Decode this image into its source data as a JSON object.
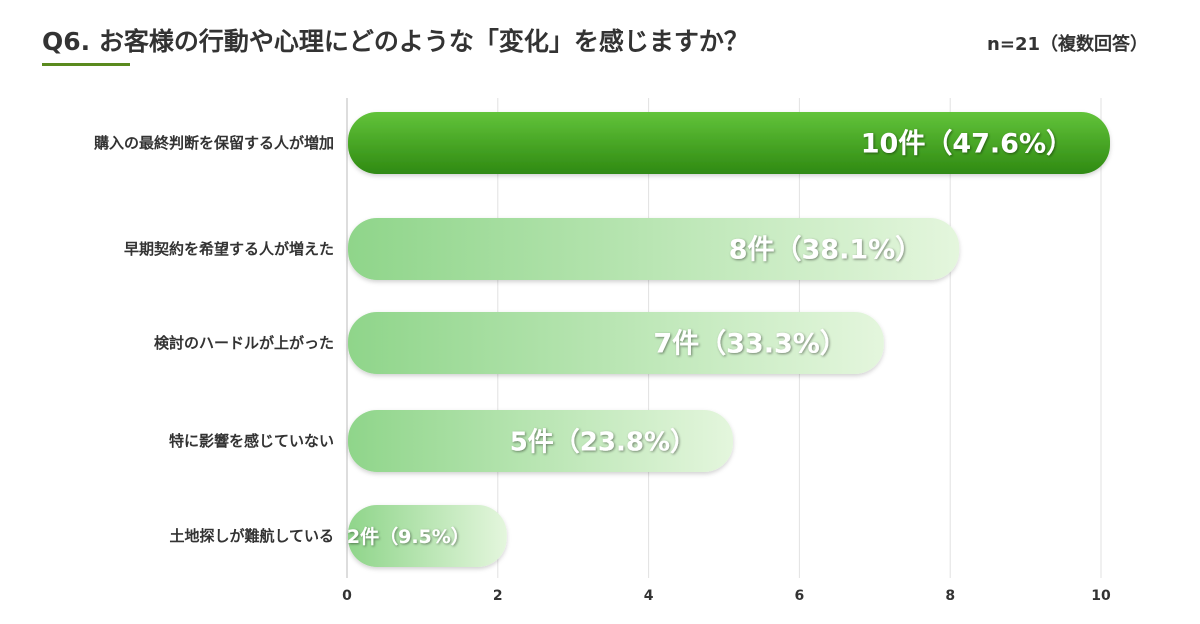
{
  "header": {
    "title": "Q6. お客様の行動や心理にどのような「変化」を感じますか？",
    "sample": "n=21（複数回答）"
  },
  "colors": {
    "accent": "#5a8a1e",
    "top_bar_dark": "#2f8a12",
    "top_bar_light": "#62c33a",
    "bar_dark": "#8fd58a",
    "bar_light": "#e4f6dd"
  },
  "chart_data": {
    "type": "bar",
    "orientation": "horizontal",
    "categories": [
      "購入の最終判断を保留する人が増加",
      "早期契約を希望する人が増えた",
      "検討のハードルが上がった",
      "特に影響を感じていない",
      "土地探しが難航している"
    ],
    "values": [
      10,
      8,
      7,
      5,
      2
    ],
    "data_labels": [
      "10件（47.6%）",
      "8件（38.1%）",
      "7件（33.3%）",
      "5件（23.8%）",
      "2件（9.5%）"
    ],
    "xlim": [
      0,
      10
    ],
    "xticks": [
      "0",
      "2",
      "4",
      "6",
      "8",
      "10"
    ],
    "grid": true,
    "legend": "none"
  }
}
